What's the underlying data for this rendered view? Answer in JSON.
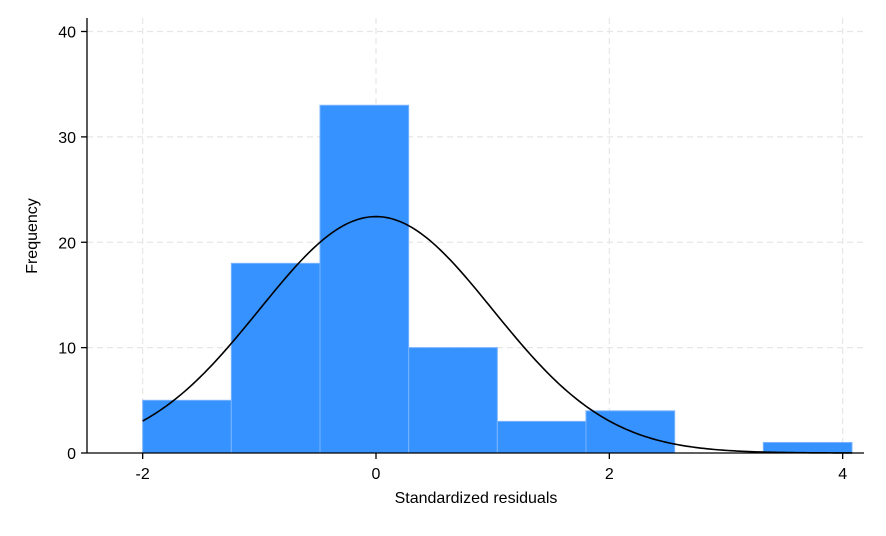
{
  "chart_data": {
    "type": "bar",
    "subtype": "histogram",
    "title": "",
    "xlabel": "Standardized residuals",
    "ylabel": "Frequency",
    "xlim": [
      -2.3,
      4.15
    ],
    "ylim": [
      0,
      41
    ],
    "xticks": [
      -2,
      0,
      2,
      4
    ],
    "xtick_labels": [
      "-2",
      "0",
      "2",
      "4"
    ],
    "yticks": [
      0,
      10,
      20,
      30,
      40
    ],
    "ytick_labels": [
      "0",
      "10",
      "20",
      "30",
      "40"
    ],
    "grid": true,
    "legend": "none",
    "bins": [
      {
        "x0": -2.0,
        "x1": -1.24,
        "value": 5
      },
      {
        "x0": -1.24,
        "x1": -0.48,
        "value": 18
      },
      {
        "x0": -0.48,
        "x1": 0.28,
        "value": 33
      },
      {
        "x0": 0.28,
        "x1": 1.04,
        "value": 10
      },
      {
        "x0": 1.04,
        "x1": 1.8,
        "value": 3
      },
      {
        "x0": 1.8,
        "x1": 2.56,
        "value": 4
      },
      {
        "x0": 2.56,
        "x1": 3.32,
        "value": 0
      },
      {
        "x0": 3.32,
        "x1": 4.08,
        "value": 1
      }
    ],
    "normal_curve": {
      "mean": 0.0,
      "sd": 1.0,
      "n": 74,
      "bin_width": 0.76,
      "x_range": [
        -2.0,
        4.08
      ]
    },
    "colors": {
      "bar_fill": "#3592FF",
      "bar_edge": "#79B3FF",
      "curve": "#000000",
      "grid": "#E6E6E6",
      "axis": "#000000"
    }
  }
}
